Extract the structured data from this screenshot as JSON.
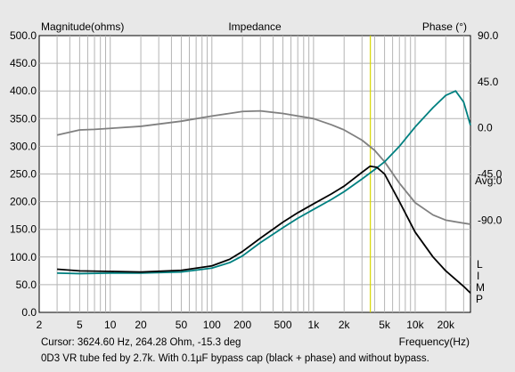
{
  "chart_data": {
    "type": "line",
    "title": "Impedance",
    "y_left_label": "Magnitude(ohms)",
    "y_right_label": "Phase (°)",
    "xlabel": "Frequency(Hz)",
    "x_scale": "log",
    "xlim": [
      2,
      35000
    ],
    "ylim_left": [
      0,
      500
    ],
    "ylim_right": [
      -180,
      90
    ],
    "y_left_ticks": [
      "0.0",
      "50.0",
      "100.0",
      "150.0",
      "200.0",
      "250.0",
      "300.0",
      "350.0",
      "400.0",
      "450.0",
      "500.0"
    ],
    "y_right_ticks": [
      {
        "value": 90,
        "label": "90.0"
      },
      {
        "value": 45,
        "label": "45.0"
      },
      {
        "value": 0,
        "label": "0.0"
      },
      {
        "value": -45,
        "label": "-45.0"
      },
      {
        "value": -90,
        "label": "-90.0"
      }
    ],
    "x_ticks": [
      {
        "value": 2,
        "label": "2"
      },
      {
        "value": 5,
        "label": "5"
      },
      {
        "value": 10,
        "label": "10"
      },
      {
        "value": 20,
        "label": "20"
      },
      {
        "value": 50,
        "label": "50"
      },
      {
        "value": 100,
        "label": "100"
      },
      {
        "value": 200,
        "label": "200"
      },
      {
        "value": 500,
        "label": "500"
      },
      {
        "value": 1000,
        "label": "1k"
      },
      {
        "value": 2000,
        "label": "2k"
      },
      {
        "value": 5000,
        "label": "5k"
      },
      {
        "value": 10000,
        "label": "10k"
      },
      {
        "value": 20000,
        "label": "20k"
      }
    ],
    "cursor_freq": 3624.6,
    "grid": true,
    "series": [
      {
        "color": "#000000",
        "axis": "left",
        "x": [
          3,
          5,
          10,
          20,
          50,
          100,
          150,
          200,
          300,
          500,
          700,
          1000,
          1500,
          2000,
          3000,
          3600,
          4200,
          5000,
          7000,
          10000,
          15000,
          20000,
          30000,
          35000
        ],
        "y": [
          78,
          75,
          74,
          73,
          76,
          84,
          96,
          110,
          134,
          163,
          180,
          196,
          214,
          228,
          253,
          264,
          262,
          250,
          200,
          145,
          100,
          75,
          47,
          35
        ]
      },
      {
        "color": "#008080",
        "axis": "left",
        "x": [
          3,
          5,
          10,
          20,
          50,
          100,
          150,
          200,
          300,
          500,
          700,
          1000,
          1500,
          2000,
          3000,
          4000,
          5000,
          7000,
          10000,
          15000,
          20000,
          25000,
          30000,
          35000
        ],
        "y": [
          71,
          70,
          71,
          71,
          73,
          80,
          90,
          102,
          126,
          153,
          170,
          186,
          204,
          218,
          241,
          258,
          272,
          300,
          335,
          370,
          392,
          400,
          380,
          338
        ]
      },
      {
        "color": "#808080",
        "axis": "right",
        "x": [
          3,
          5,
          7,
          10,
          20,
          50,
          100,
          200,
          300,
          500,
          1000,
          1500,
          2000,
          3000,
          4000,
          5000,
          7000,
          10000,
          15000,
          20000,
          30000,
          35000
        ],
        "y": [
          -7,
          -2,
          -1.5,
          -0.5,
          1.5,
          6.5,
          11.5,
          16,
          16.5,
          14,
          9,
          3,
          -2,
          -12,
          -22,
          -33,
          -54,
          -73,
          -85,
          -90,
          -93,
          -94
        ]
      }
    ],
    "right_labels": [
      "Avg:0",
      "L",
      "I",
      "M",
      "P"
    ],
    "cursor_readout": "Cursor: 3624.60 Hz, 264.28 Ohm, -15.3 deg",
    "caption": "0D3 VR tube fed by 2.7k. With 0.1µF bypass cap (black + phase) and without bypass."
  }
}
